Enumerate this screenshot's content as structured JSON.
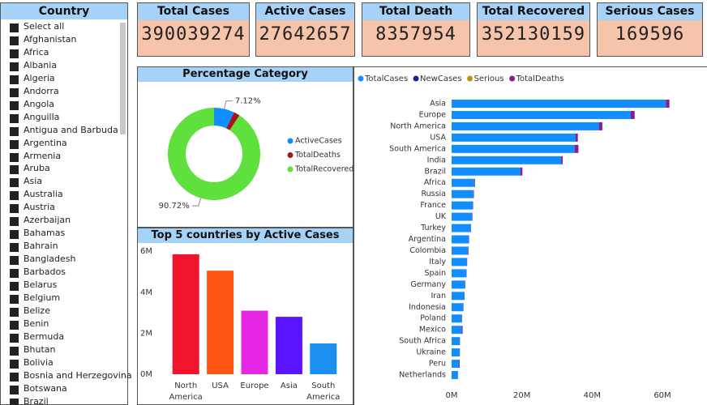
{
  "slicer": {
    "title": "Country",
    "items": [
      "Select all",
      "Afghanistan",
      "Africa",
      "Albania",
      "Algeria",
      "Andorra",
      "Angola",
      "Anguilla",
      "Antigua and Barbuda",
      "Argentina",
      "Armenia",
      "Aruba",
      "Asia",
      "Australia",
      "Austria",
      "Azerbaijan",
      "Bahamas",
      "Bahrain",
      "Bangladesh",
      "Barbados",
      "Belarus",
      "Belgium",
      "Belize",
      "Benin",
      "Bermuda",
      "Bhutan",
      "Bolivia",
      "Bosnia and Herzegovina",
      "Botswana",
      "Brazil"
    ]
  },
  "cards": [
    {
      "title": "Total Cases",
      "value": 390039274
    },
    {
      "title": "Active Cases",
      "value": 27642657
    },
    {
      "title": "Total Death",
      "value": 8357954
    },
    {
      "title": "Total Recovered",
      "value": 352130159
    },
    {
      "title": "Serious Cases",
      "value": 169596
    }
  ],
  "chart_data": [
    {
      "type": "donut",
      "title": "Percentage Category",
      "categories": [
        "ActiveCases",
        "TotalDeaths",
        "TotalRecovered"
      ],
      "values": [
        7.12,
        2.16,
        90.72
      ],
      "value_labels": [
        "7.12%",
        null,
        "90.72%"
      ],
      "colors": [
        "#118dff",
        "#a4161a",
        "#5fe03c"
      ]
    },
    {
      "type": "bar",
      "title": "Top 5 countries by Active Cases",
      "categories": [
        "North America",
        "USA",
        "Europe",
        "Asia",
        "South America"
      ],
      "values": [
        5850000,
        5050000,
        3100000,
        2800000,
        1500000
      ],
      "colors": [
        "#f0142d",
        "#ff5514",
        "#e628e6",
        "#5a14ff",
        "#1a8ff0"
      ],
      "ylim": [
        0,
        6400000
      ],
      "yticks": [
        {
          "value": 0,
          "label": "0M"
        },
        {
          "value": 2000000,
          "label": "2M"
        },
        {
          "value": 4000000,
          "label": "4M"
        },
        {
          "value": 6000000,
          "label": "6M"
        }
      ]
    },
    {
      "type": "hbar",
      "categories": [
        "Asia",
        "Europe",
        "North America",
        "USA",
        "South America",
        "India",
        "Brazil",
        "Africa",
        "Russia",
        "France",
        "UK",
        "Turkey",
        "Argentina",
        "Colombia",
        "Italy",
        "Spain",
        "Germany",
        "Iran",
        "Indonesia",
        "Poland",
        "Mexico",
        "South Africa",
        "Ukraine",
        "Peru",
        "Netherlands"
      ],
      "series": [
        {
          "name": "TotalCases",
          "color": "#118dff",
          "values": [
            61000000,
            51000000,
            42000000,
            35300000,
            35000000,
            31200000,
            19600000,
            6500000,
            6200000,
            6000000,
            5800000,
            5500000,
            4900000,
            4700000,
            4300000,
            4200000,
            3800000,
            3600000,
            3300000,
            2900000,
            2900000,
            2300000,
            2300000,
            2100000,
            1800000
          ]
        },
        {
          "name": "NewCases",
          "color": "#12239e",
          "values": [
            0,
            0,
            0,
            0,
            0,
            0,
            0,
            0,
            0,
            0,
            0,
            0,
            0,
            0,
            0,
            0,
            0,
            0,
            0,
            0,
            0,
            0,
            0,
            0,
            0
          ]
        },
        {
          "name": "Serious",
          "color": "#b8950c",
          "values": [
            0,
            0,
            0,
            0,
            0,
            0,
            0,
            0,
            0,
            0,
            0,
            0,
            0,
            0,
            0,
            0,
            0,
            0,
            0,
            0,
            0,
            0,
            0,
            0,
            0
          ]
        },
        {
          "name": "TotalDeaths",
          "color": "#8a1d8a",
          "values": [
            1000000,
            1100000,
            900000,
            630000,
            1100000,
            420000,
            550000,
            160000,
            150000,
            110000,
            130000,
            50000,
            100000,
            120000,
            130000,
            80000,
            90000,
            90000,
            90000,
            75000,
            240000,
            70000,
            55000,
            200000,
            18000
          ]
        }
      ],
      "xlim": [
        0,
        72000000
      ],
      "xticks": [
        {
          "value": 0,
          "label": "0M"
        },
        {
          "value": 20000000,
          "label": "20M"
        },
        {
          "value": 40000000,
          "label": "40M"
        },
        {
          "value": 60000000,
          "label": "60M"
        }
      ],
      "legend": "top-left"
    }
  ]
}
